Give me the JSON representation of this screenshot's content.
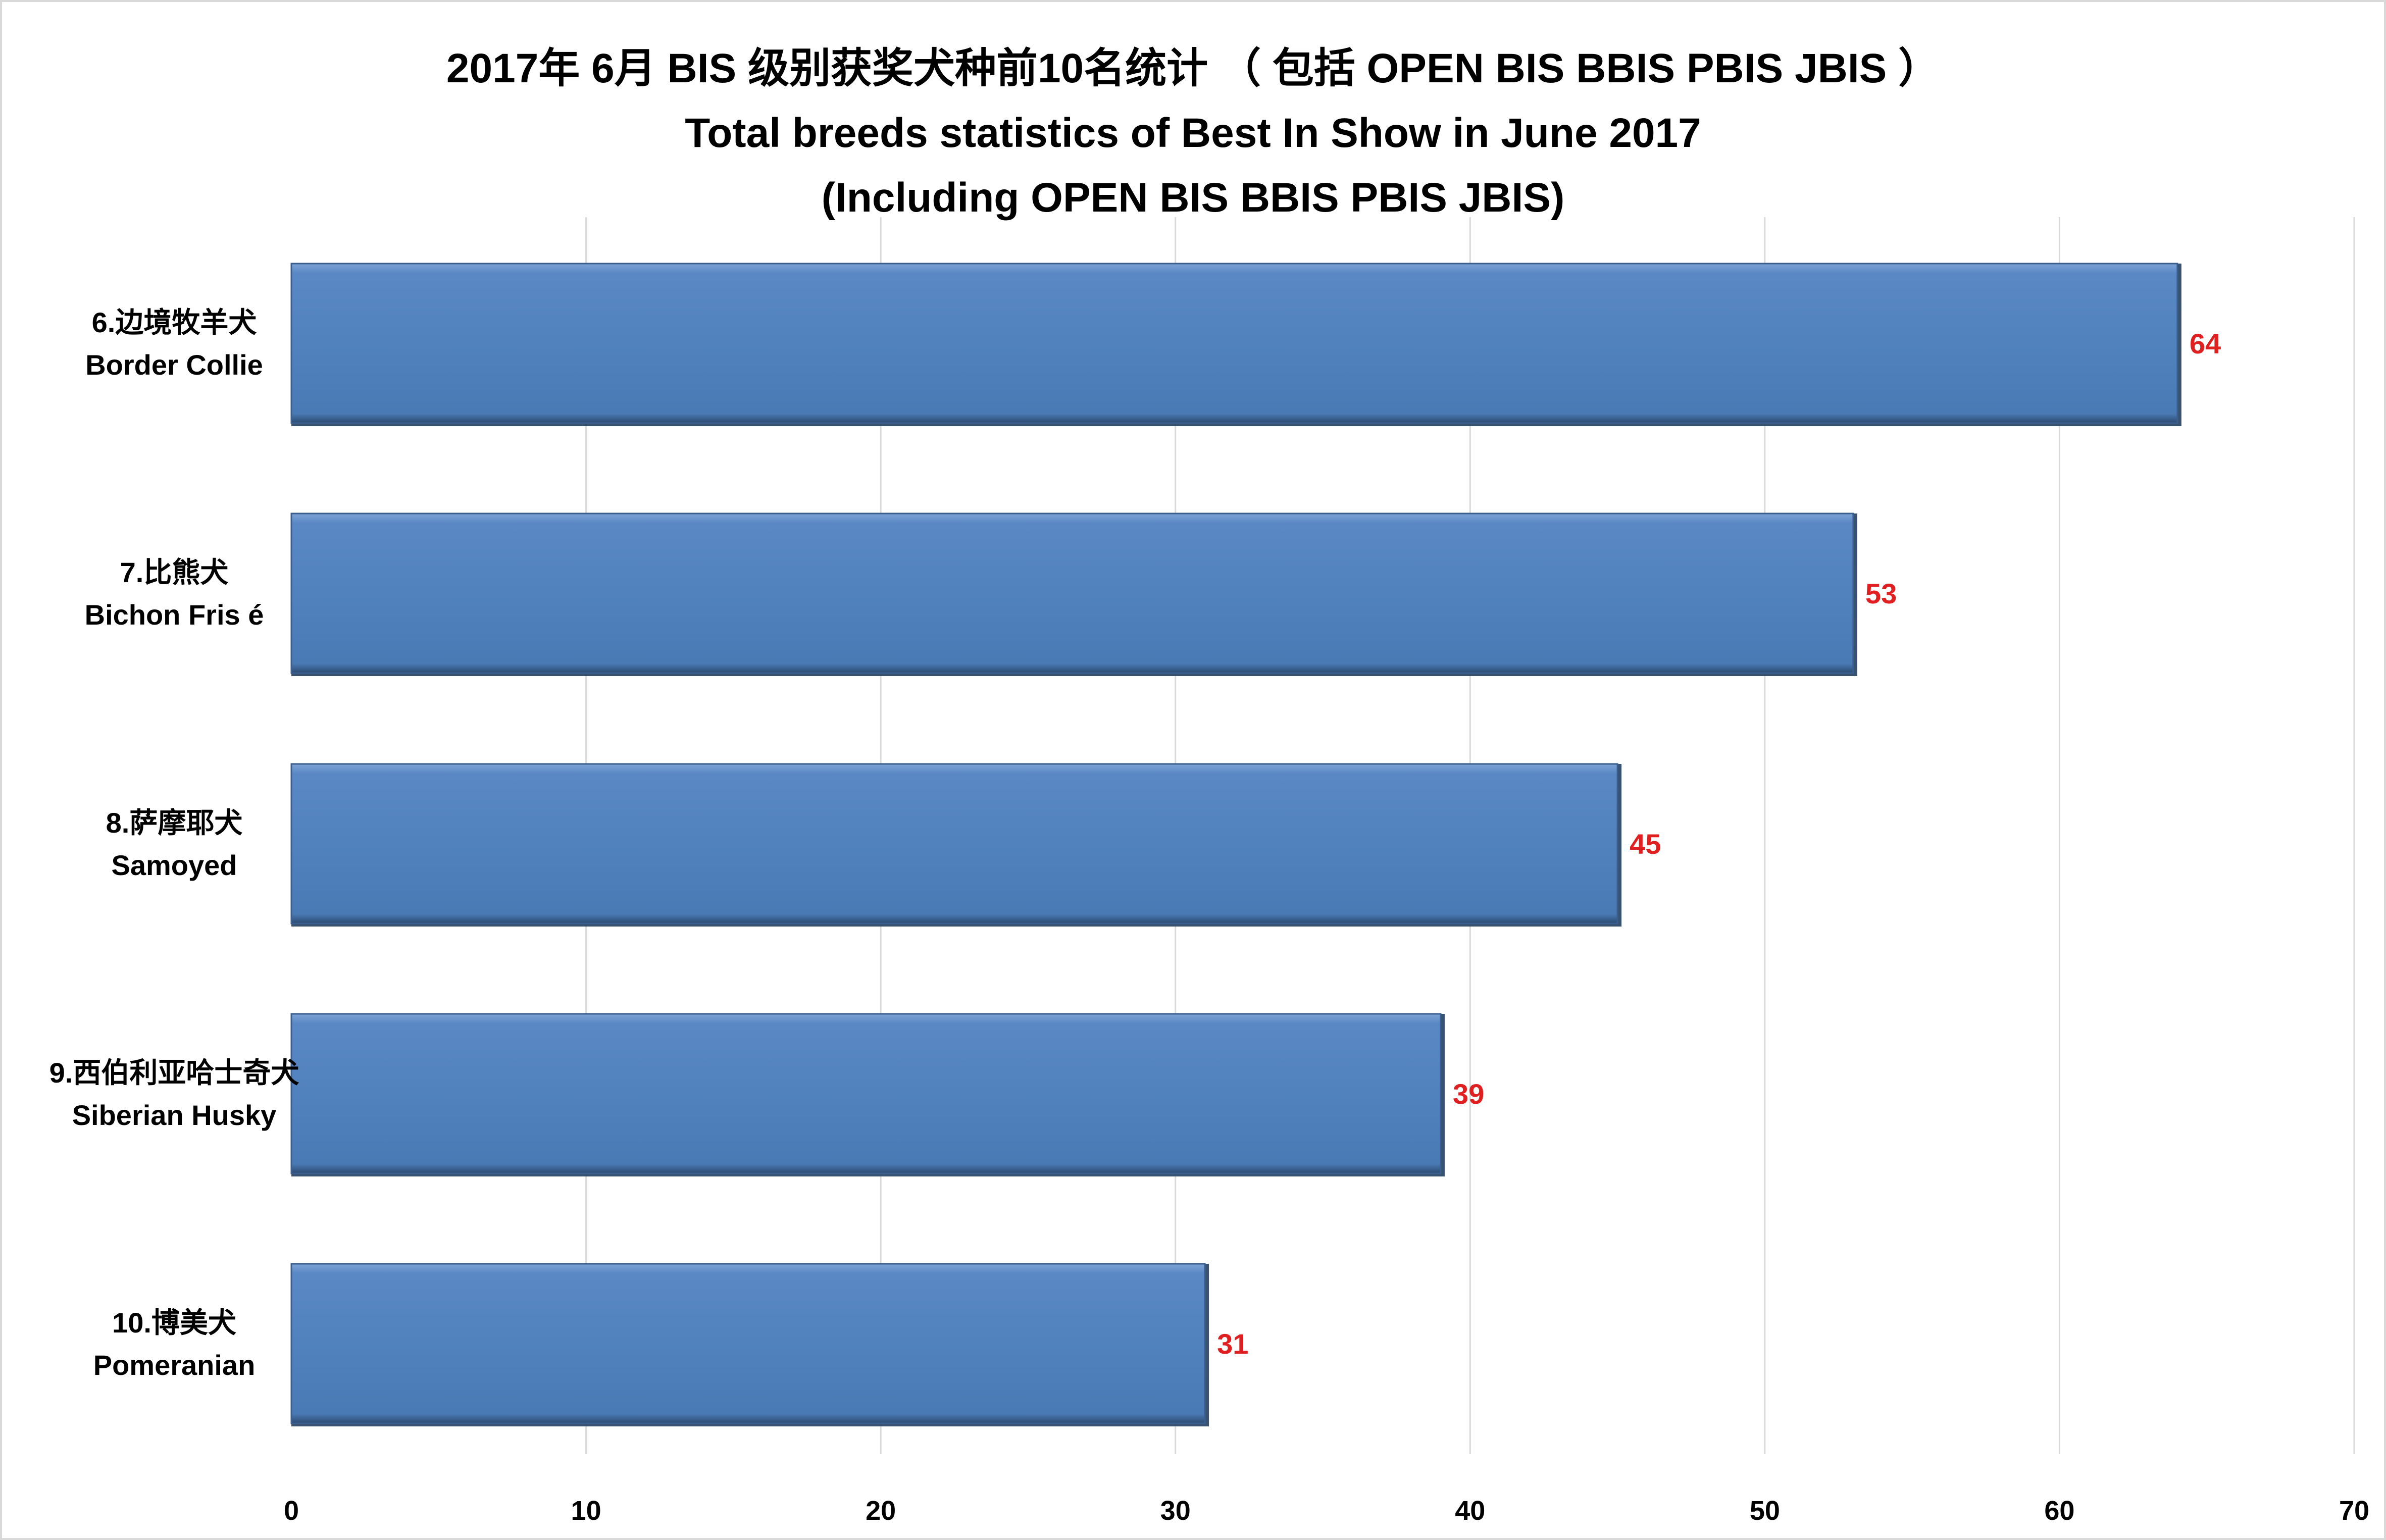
{
  "title": {
    "line1": "2017年  6月 BIS 级别获奖犬种前10名统计 （ 包括 OPEN BIS BBIS PBIS JBIS ）",
    "line2": "Total breeds statistics of Best In Show in June 2017",
    "line3": "(Including OPEN BIS BBIS PBIS JBIS)"
  },
  "colors": {
    "bar": "#4f81bd",
    "bar_edge": "#243f60",
    "data_label": "#e02020",
    "grid": "#d9d9d9"
  },
  "chart_data": {
    "type": "bar",
    "orientation": "horizontal",
    "categories": [
      [
        "6.边境牧羊犬",
        "Border Collie"
      ],
      [
        "7.比熊犬",
        "Bichon Fris é"
      ],
      [
        "8.萨摩耶犬",
        "Samoyed"
      ],
      [
        "9.西伯利亚哈士奇犬",
        "Siberian Husky"
      ],
      [
        "10.博美犬",
        "Pomeranian"
      ]
    ],
    "values": [
      64,
      53,
      45,
      39,
      31
    ],
    "xlim": [
      0,
      70
    ],
    "xticks": [
      "0",
      "10",
      "20",
      "30",
      "40",
      "50",
      "60",
      "70"
    ],
    "grid": true,
    "data_labels": true,
    "legend": "none"
  }
}
